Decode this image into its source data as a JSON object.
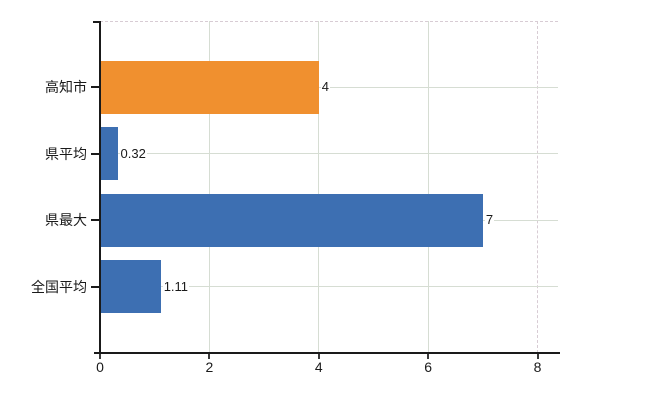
{
  "chart_data": {
    "type": "bar",
    "orientation": "horizontal",
    "title": "",
    "categories": [
      "高知市",
      "県平均",
      "県最大",
      "全国平均"
    ],
    "values": [
      4,
      0.32,
      7,
      1.11
    ],
    "value_labels": [
      "4",
      "0.32",
      "7",
      "1.11"
    ],
    "bar_colors": [
      "#f0902f",
      "#3d6fb2",
      "#3d6fb2",
      "#3d6fb2"
    ],
    "series": [
      {
        "name": "value",
        "values": [
          4,
          0.32,
          7,
          1.11
        ]
      }
    ],
    "xlim": [
      0,
      8.4
    ],
    "x_ticks": [
      0,
      2,
      4,
      6,
      8
    ],
    "x_tick_labels": [
      "0",
      "2",
      "4",
      "6",
      "8"
    ],
    "grid": true,
    "legend_position": "none"
  },
  "colors": {
    "background": "#ffffff",
    "bar_orange": "#f0902f",
    "bar_blue": "#3d6fb2",
    "grid_solid": "#d6ddd3",
    "grid_dashed": "#d8ccd4",
    "axis": "#1a1a1a",
    "text": "#1a1a1a"
  }
}
